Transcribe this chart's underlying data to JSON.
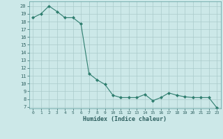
{
  "x": [
    0,
    1,
    2,
    3,
    4,
    5,
    6,
    7,
    8,
    9,
    10,
    11,
    12,
    13,
    14,
    15,
    16,
    17,
    18,
    19,
    20,
    21,
    22,
    23
  ],
  "y": [
    18.5,
    19.0,
    20.0,
    19.3,
    18.5,
    18.5,
    17.7,
    11.3,
    10.5,
    9.9,
    8.5,
    8.2,
    8.2,
    8.2,
    8.6,
    7.8,
    8.2,
    8.8,
    8.5,
    8.3,
    8.2,
    8.2,
    8.2,
    6.9
  ],
  "line_color": "#2e7d6e",
  "marker": "D",
  "marker_size": 2.0,
  "bg_color": "#cce8e8",
  "grid_color": "#aacaca",
  "xlabel": "Humidex (Indice chaleur)",
  "xlim": [
    -0.5,
    23.5
  ],
  "ylim": [
    6.8,
    20.6
  ],
  "yticks": [
    7,
    8,
    9,
    10,
    11,
    12,
    13,
    14,
    15,
    16,
    17,
    18,
    19,
    20
  ],
  "xticks": [
    0,
    1,
    2,
    3,
    4,
    5,
    6,
    7,
    8,
    9,
    10,
    11,
    12,
    13,
    14,
    15,
    16,
    17,
    18,
    19,
    20,
    21,
    22,
    23
  ]
}
